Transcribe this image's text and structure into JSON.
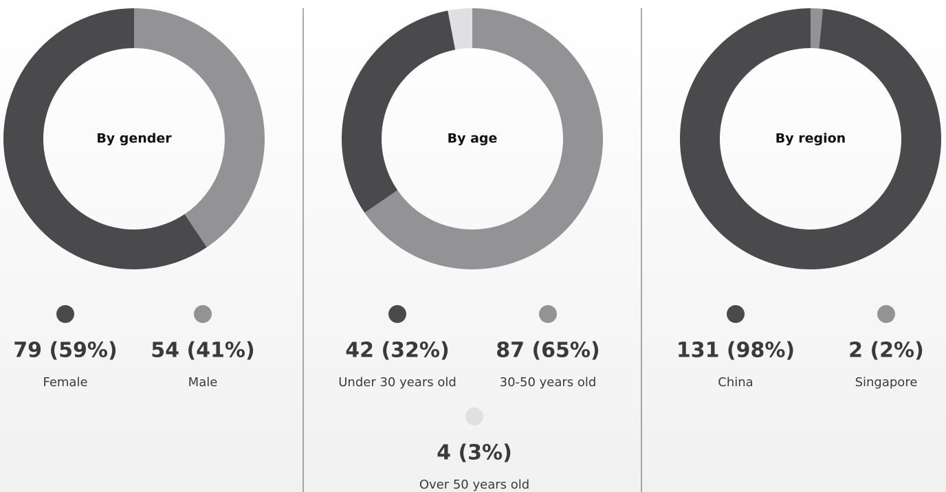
{
  "chart_data": [
    {
      "type": "pie",
      "title": "By gender",
      "categories": [
        "Female",
        "Male"
      ],
      "values": [
        79,
        54
      ],
      "value_labels": [
        "79 (59%)",
        "54 (41%)"
      ],
      "colors": [
        "#4a4a4c",
        "#939396"
      ]
    },
    {
      "type": "pie",
      "title": "By age",
      "categories": [
        "Under 30 years old",
        "30-50 years old",
        "Over 50 years old"
      ],
      "values": [
        42,
        87,
        4
      ],
      "value_labels": [
        "42 (32%)",
        "87 (65%)",
        "4 (3%)"
      ],
      "colors": [
        "#4a4a4c",
        "#939396",
        "#e0e0e2"
      ]
    },
    {
      "type": "pie",
      "title": "By region",
      "categories": [
        "China",
        "Singapore"
      ],
      "values": [
        131,
        2
      ],
      "value_labels": [
        "131 (98%)",
        "2 (2%)"
      ],
      "colors": [
        "#4a4a4c",
        "#939396"
      ]
    }
  ]
}
